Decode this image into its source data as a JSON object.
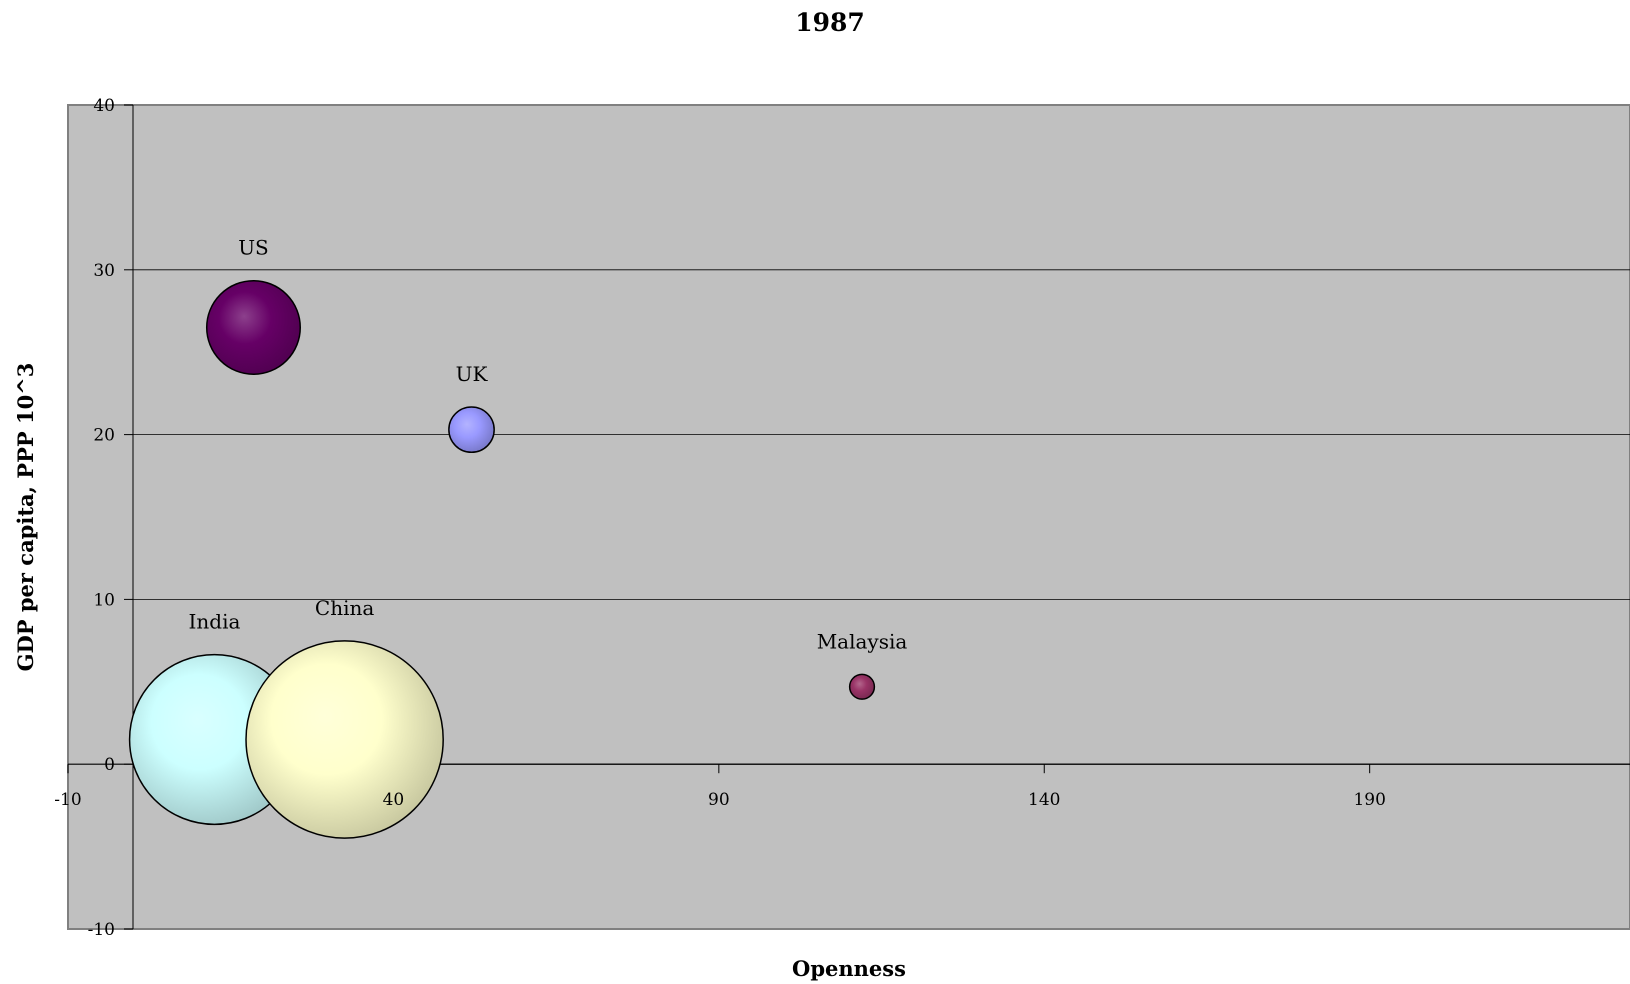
{
  "chart_data": {
    "type": "scatter",
    "subtype": "bubble",
    "title": "1987",
    "xlabel": "Openness",
    "ylabel": "GDP per capita, PPP 10^3",
    "xlim": [
      -10,
      230
    ],
    "ylim": [
      -10,
      40
    ],
    "x_ticks": [
      -10,
      40,
      90,
      140,
      190
    ],
    "y_ticks": [
      -10,
      0,
      10,
      20,
      30,
      40
    ],
    "grid": "horizontal",
    "plot_background": "#c0c0c0",
    "series": [
      {
        "name": "US",
        "x": 18.5,
        "y": 26.5,
        "size": 243,
        "color": "#660066"
      },
      {
        "name": "UK",
        "x": 52,
        "y": 20.3,
        "size": 57,
        "color": "#9999ff"
      },
      {
        "name": "India",
        "x": 12.5,
        "y": 1.5,
        "size": 800,
        "color": "#ccffff"
      },
      {
        "name": "China",
        "x": 32.5,
        "y": 1.5,
        "size": 1080,
        "color": "#ffffcc"
      },
      {
        "name": "Malaysia",
        "x": 112,
        "y": 4.7,
        "size": 17,
        "color": "#993366"
      }
    ]
  }
}
